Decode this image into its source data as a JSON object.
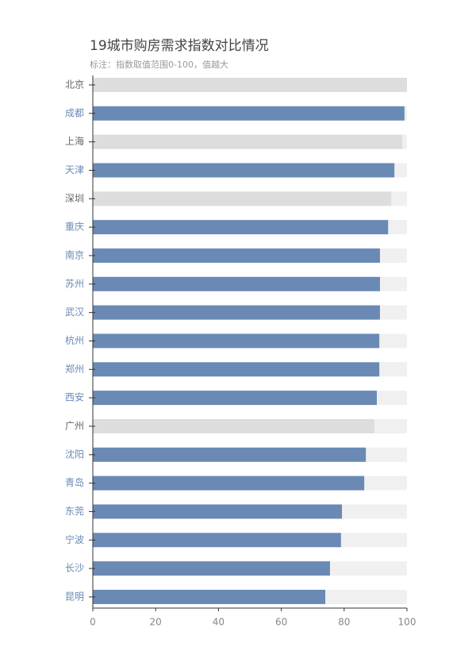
{
  "chart_data": {
    "type": "bar",
    "orientation": "horizontal",
    "title": "19城市购房需求指数对比情况",
    "subtitle": "标注：指数取值范围0-100，值越大",
    "categories": [
      "北京",
      "成都",
      "上海",
      "天津",
      "深圳",
      "重庆",
      "南京",
      "苏州",
      "武汉",
      "杭州",
      "郑州",
      "西安",
      "广州",
      "沈阳",
      "青岛",
      "东莞",
      "宁波",
      "长沙",
      "昆明"
    ],
    "values": [
      100,
      99.2,
      98.5,
      96,
      95,
      94,
      91.4,
      91.4,
      91.4,
      91.2,
      91.2,
      90.4,
      89.6,
      86.9,
      86.4,
      79.3,
      79,
      75.5,
      74
    ],
    "colors": [
      "#dddddd",
      "#6a8ab5",
      "#dddddd",
      "#6a8ab5",
      "#dddddd",
      "#6a8ab5",
      "#6a8ab5",
      "#6a8ab5",
      "#6a8ab5",
      "#6a8ab5",
      "#6a8ab5",
      "#6a8ab5",
      "#dddddd",
      "#6a8ab5",
      "#6a8ab5",
      "#6a8ab5",
      "#6a8ab5",
      "#6a8ab5",
      "#6a8ab5"
    ],
    "xlim": [
      0,
      100
    ],
    "xticks": [
      0,
      20,
      40,
      60,
      80,
      100
    ]
  }
}
